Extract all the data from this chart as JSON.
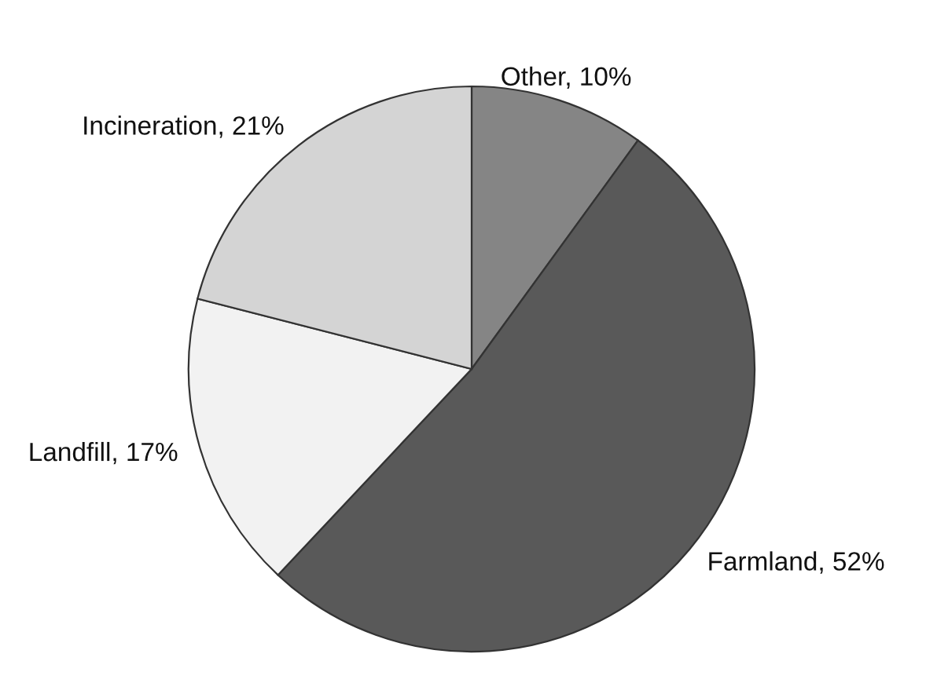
{
  "chart_data": {
    "type": "pie",
    "categories": [
      "Other",
      "Farmland",
      "Landfill",
      "Incineration"
    ],
    "values": [
      10,
      52,
      17,
      21
    ],
    "value_labels": [
      "10%",
      "52%",
      "17%",
      "21%"
    ],
    "colors": [
      "#858585",
      "#595959",
      "#f2f2f2",
      "#d4d4d4"
    ]
  }
}
